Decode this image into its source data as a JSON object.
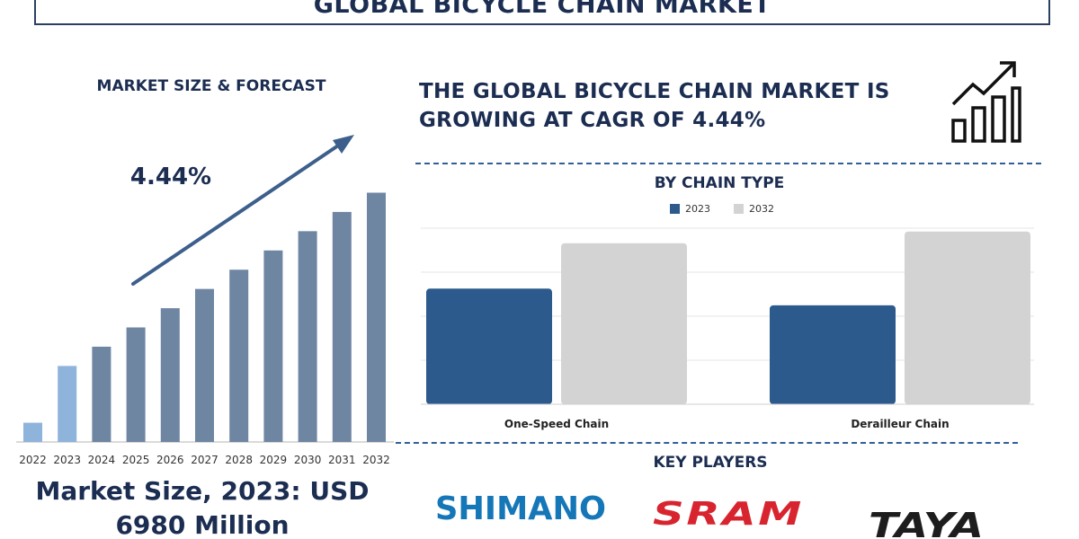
{
  "title": "GLOBAL BICYCLE CHAIN MARKET",
  "left_panel": {
    "heading": "MARKET SIZE & FORECAST",
    "cagr_label": "4.44%",
    "market_size_line1": "Market Size, 2023: USD",
    "market_size_line2": "6980 Million"
  },
  "headline": "THE GLOBAL BICYCLE CHAIN MARKET IS GROWING AT CAGR OF 4.44%",
  "chart_title": "BY CHAIN TYPE",
  "legend": {
    "y2023": "2023",
    "y2032": "2032"
  },
  "key_players_heading": "KEY PLAYERS",
  "logos": [
    "SHIMANO",
    "SRAM",
    "TAYA"
  ],
  "colors": {
    "navy": "#1c2d52",
    "bar_2022_2023": "#8fb4db",
    "bar_forecast": "#6f86a3",
    "arrow": "#3d5f8c",
    "series_2023": "#2c5a8c",
    "series_2032": "#d3d3d3",
    "shimano_blue": "#1577b8",
    "sram_red": "#d8242f",
    "taya_black": "#1d1d1d"
  },
  "chart_data": [
    {
      "type": "bar",
      "categories": [
        "2022",
        "2023",
        "2024",
        "2025",
        "2026",
        "2027",
        "2028",
        "2029",
        "2030",
        "2031",
        "2032"
      ],
      "values": [
        1.0,
        3.95,
        4.95,
        5.95,
        6.95,
        7.95,
        8.95,
        9.95,
        10.95,
        11.95,
        12.95
      ],
      "ylim": [
        0,
        14
      ],
      "annotation": "4.44%",
      "xlabel": "",
      "ylabel": ""
    },
    {
      "type": "bar",
      "title": "BY CHAIN TYPE",
      "categories": [
        "One-Speed Chain",
        "Derailleur Chain"
      ],
      "series": [
        {
          "name": "2023",
          "values": [
            6.9,
            5.9
          ]
        },
        {
          "name": "2032",
          "values": [
            9.6,
            10.3
          ]
        }
      ],
      "ylim": [
        0,
        10.5
      ],
      "grid": true,
      "legend_position": "top"
    }
  ]
}
